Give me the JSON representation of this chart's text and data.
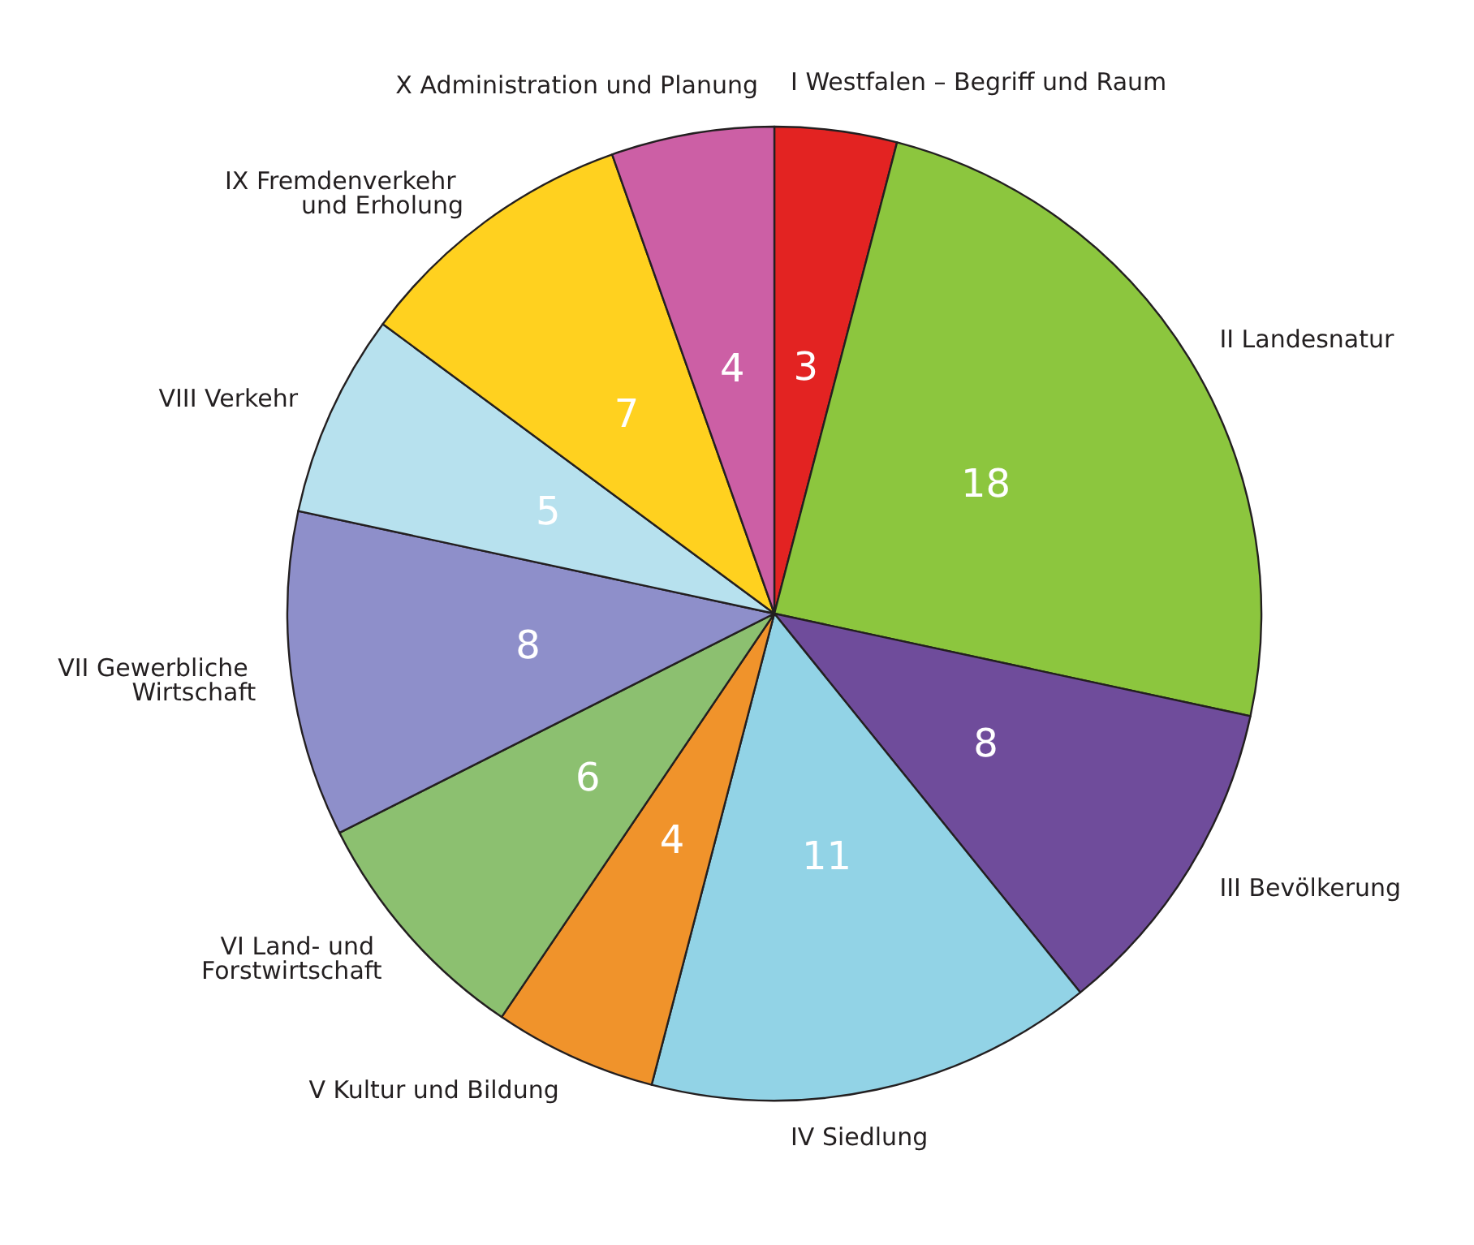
{
  "chart_data": {
    "type": "pie",
    "categories": [
      "I Westfalen – Begriff und Raum",
      "II Landesnatur",
      "III Bevölkerung",
      "IV Siedlung",
      "V Kultur und Bildung",
      "VI Land- und Forstwirtschaft",
      "VII Gewerbliche Wirtschaft",
      "VIII Verkehr",
      "IX Fremdenverkehr und Erholung",
      "X Administration und Planung"
    ],
    "values": [
      3,
      18,
      8,
      11,
      4,
      6,
      8,
      5,
      7,
      4
    ],
    "colors": [
      "#e32322",
      "#8cc63e",
      "#6f4c9b",
      "#92d3e6",
      "#f0932b",
      "#8cc070",
      "#8e8fca",
      "#b7e1ee",
      "#ffd11f",
      "#cc5fa5"
    ],
    "data_labels": true,
    "legend": false
  }
}
